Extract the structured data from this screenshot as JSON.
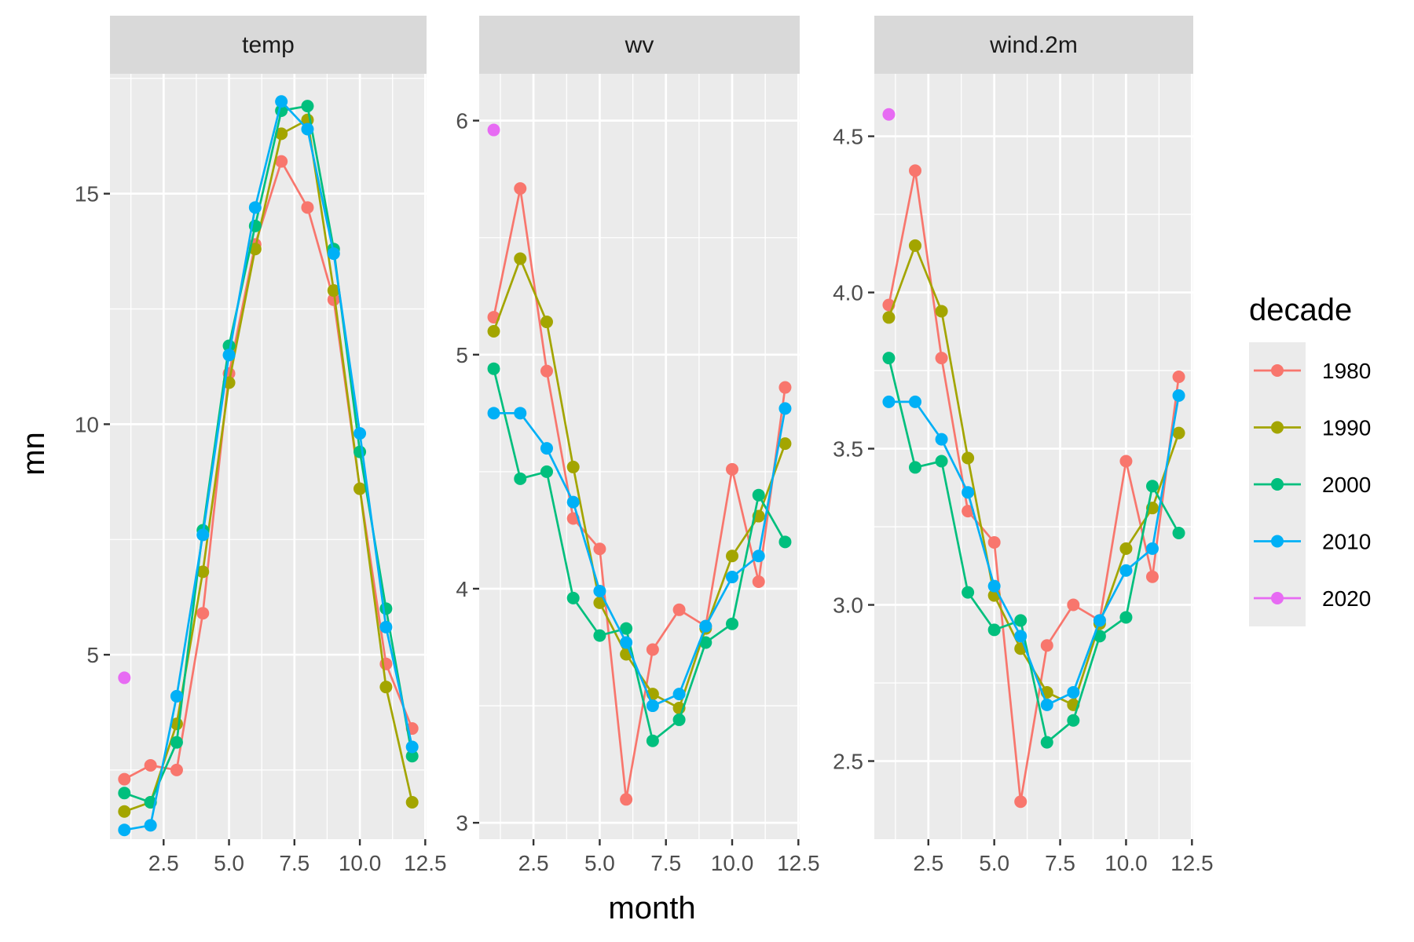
{
  "chart_data": {
    "type": "line",
    "facet_variable": "var",
    "xlabel": "month",
    "ylabel": "mn",
    "legend": {
      "title": "decade",
      "position": "right",
      "items": [
        {
          "name": "1980",
          "color": "#F8766D"
        },
        {
          "name": "1990",
          "color": "#A3A500"
        },
        {
          "name": "2000",
          "color": "#00BF7D"
        },
        {
          "name": "2010",
          "color": "#00B0F6"
        },
        {
          "name": "2020",
          "color": "#E76BF3"
        }
      ]
    },
    "grid": true,
    "x_ticks": [
      2.5,
      5.0,
      7.5,
      10.0,
      12.5
    ],
    "x_tick_labels": [
      "2.5",
      "5.0",
      "7.5",
      "10.0",
      "12.5"
    ],
    "xlim": [
      0.45,
      12.55
    ],
    "panels": [
      {
        "strip": "temp",
        "ylim": [
          1.0,
          17.6
        ],
        "y_ticks": [
          5,
          10,
          15
        ],
        "y_tick_labels": [
          "5",
          "10",
          "15"
        ],
        "series": [
          {
            "name": "1980",
            "x": [
              1,
              2,
              3,
              4,
              5,
              6,
              7,
              8,
              9,
              10,
              11,
              12
            ],
            "values": [
              2.3,
              2.6,
              2.5,
              5.9,
              11.1,
              13.9,
              15.7,
              14.7,
              12.7,
              8.6,
              4.8,
              3.4
            ]
          },
          {
            "name": "1990",
            "x": [
              1,
              2,
              3,
              4,
              5,
              6,
              7,
              8,
              9,
              10,
              11,
              12
            ],
            "values": [
              1.6,
              1.8,
              3.5,
              6.8,
              10.9,
              13.8,
              16.3,
              16.6,
              12.9,
              8.6,
              4.3,
              1.8
            ]
          },
          {
            "name": "2000",
            "x": [
              1,
              2,
              3,
              4,
              5,
              6,
              7,
              8,
              9,
              10,
              11,
              12
            ],
            "values": [
              2.0,
              1.8,
              3.1,
              7.7,
              11.7,
              14.3,
              16.8,
              16.9,
              13.8,
              9.4,
              6.0,
              2.8
            ]
          },
          {
            "name": "2010",
            "x": [
              1,
              2,
              3,
              4,
              5,
              6,
              7,
              8,
              9,
              10,
              11,
              12
            ],
            "values": [
              1.2,
              1.3,
              4.1,
              7.6,
              11.5,
              14.7,
              17.0,
              16.4,
              13.7,
              9.8,
              5.6,
              3.0
            ]
          },
          {
            "name": "2020",
            "x": [
              1
            ],
            "values": [
              4.5
            ]
          }
        ]
      },
      {
        "strip": "wv",
        "ylim": [
          2.93,
          6.2
        ],
        "y_ticks": [
          3,
          4,
          5,
          6
        ],
        "y_tick_labels": [
          "3",
          "4",
          "5",
          "6"
        ],
        "series": [
          {
            "name": "1980",
            "x": [
              1,
              2,
              3,
              4,
              5,
              6,
              7,
              8,
              9,
              10,
              11,
              12
            ],
            "values": [
              5.16,
              5.71,
              4.93,
              4.3,
              4.17,
              3.1,
              3.74,
              3.91,
              3.84,
              4.51,
              4.03,
              4.86
            ]
          },
          {
            "name": "1990",
            "x": [
              1,
              2,
              3,
              4,
              5,
              6,
              7,
              8,
              9,
              10,
              11,
              12
            ],
            "values": [
              5.1,
              5.41,
              5.14,
              4.52,
              3.94,
              3.72,
              3.55,
              3.49,
              3.83,
              4.14,
              4.31,
              4.62
            ]
          },
          {
            "name": "2000",
            "x": [
              1,
              2,
              3,
              4,
              5,
              6,
              7,
              8,
              9,
              10,
              11,
              12
            ],
            "values": [
              4.94,
              4.47,
              4.5,
              3.96,
              3.8,
              3.83,
              3.35,
              3.44,
              3.77,
              3.85,
              4.4,
              4.2
            ]
          },
          {
            "name": "2010",
            "x": [
              1,
              2,
              3,
              4,
              5,
              6,
              7,
              8,
              9,
              10,
              11,
              12
            ],
            "values": [
              4.75,
              4.75,
              4.6,
              4.37,
              3.99,
              3.77,
              3.5,
              3.55,
              3.84,
              4.05,
              4.14,
              4.77
            ]
          },
          {
            "name": "2020",
            "x": [
              1
            ],
            "values": [
              5.96
            ]
          }
        ]
      },
      {
        "strip": "wind.2m",
        "ylim": [
          2.25,
          4.7
        ],
        "y_ticks": [
          2.5,
          3.0,
          3.5,
          4.0,
          4.5
        ],
        "y_tick_labels": [
          "2.5",
          "3.0",
          "3.5",
          "4.0",
          "4.5"
        ],
        "series": [
          {
            "name": "1980",
            "x": [
              1,
              2,
              3,
              4,
              5,
              6,
              7,
              8,
              9,
              10,
              11,
              12
            ],
            "values": [
              3.96,
              4.39,
              3.79,
              3.3,
              3.2,
              2.37,
              2.87,
              3.0,
              2.95,
              3.46,
              3.09,
              3.73
            ]
          },
          {
            "name": "1990",
            "x": [
              1,
              2,
              3,
              4,
              5,
              6,
              7,
              8,
              9,
              10,
              11,
              12
            ],
            "values": [
              3.92,
              4.15,
              3.94,
              3.47,
              3.03,
              2.86,
              2.72,
              2.68,
              2.94,
              3.18,
              3.31,
              3.55
            ]
          },
          {
            "name": "2000",
            "x": [
              1,
              2,
              3,
              4,
              5,
              6,
              7,
              8,
              9,
              10,
              11,
              12
            ],
            "values": [
              3.79,
              3.44,
              3.46,
              3.04,
              2.92,
              2.95,
              2.56,
              2.63,
              2.9,
              2.96,
              3.38,
              3.23
            ]
          },
          {
            "name": "2010",
            "x": [
              1,
              2,
              3,
              4,
              5,
              6,
              7,
              8,
              9,
              10,
              11,
              12
            ],
            "values": [
              3.65,
              3.65,
              3.53,
              3.36,
              3.06,
              2.9,
              2.68,
              2.72,
              2.95,
              3.11,
              3.18,
              3.67
            ]
          },
          {
            "name": "2020",
            "x": [
              1
            ],
            "values": [
              4.57
            ]
          }
        ]
      }
    ]
  }
}
